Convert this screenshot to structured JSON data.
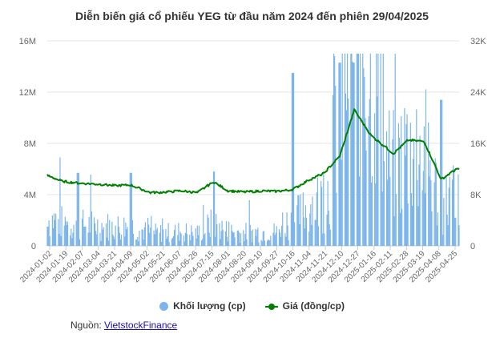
{
  "chart_data": {
    "type": "bar+line",
    "title": "Diễn biến giá cổ phiếu YEG từ đầu năm 2024 đến phiên 29/04/2025",
    "x_tick_labels": [
      "2024-01-02",
      "2024-01-19",
      "2024-02-07",
      "2024-03-04",
      "2024-03-21",
      "2024-04-09",
      "2024-05-02",
      "2024-05-21",
      "2024-06-07",
      "2024-06-26",
      "2024-07-15",
      "2024-08-01",
      "2024-08-20",
      "2024-09-10",
      "2024-09-27",
      "2024-10-16",
      "2024-11-04",
      "2024-11-21",
      "2024-12-10",
      "2024-12-27",
      "2025-01-16",
      "2025-02-11",
      "2025-02-28",
      "2025-03-19",
      "2025-04-08",
      "2025-04-25"
    ],
    "y_left": {
      "ticks": [
        "0",
        "4M",
        "8M",
        "12M",
        "16M"
      ],
      "range": [
        0,
        16000000
      ]
    },
    "y_right": {
      "ticks": [
        "0",
        "8K",
        "16K",
        "24K",
        "32K"
      ],
      "range": [
        0,
        32000
      ]
    },
    "grid": true,
    "legend_position": "bottom",
    "series": [
      {
        "name": "Khối lượng (cp)",
        "axis": "left",
        "kind": "column",
        "color": "#7cb5ec",
        "key_points": [
          {
            "x": "2024-01-02",
            "y": 1500000
          },
          {
            "x": "2024-02-07",
            "y": 5700000
          },
          {
            "x": "2024-04-09",
            "y": 5700000
          },
          {
            "x": "2024-07-15",
            "y": 5800000
          },
          {
            "x": "2024-10-16",
            "y": 13500000
          },
          {
            "x": "2024-12-10",
            "y": 14300000
          },
          {
            "x": "2024-12-27",
            "y": 14300000
          },
          {
            "x": "2025-04-08",
            "y": 11400000
          },
          {
            "x": "2025-04-25",
            "y": 2200000
          }
        ]
      },
      {
        "name": "Giá (đồng/cp)",
        "axis": "right",
        "kind": "line",
        "color": "#008000",
        "points": [
          {
            "x": "2024-01-02",
            "y": 11000
          },
          {
            "x": "2024-01-19",
            "y": 10100
          },
          {
            "x": "2024-02-07",
            "y": 9800
          },
          {
            "x": "2024-03-04",
            "y": 9600
          },
          {
            "x": "2024-03-21",
            "y": 9400
          },
          {
            "x": "2024-04-09",
            "y": 9500
          },
          {
            "x": "2024-05-02",
            "y": 8300
          },
          {
            "x": "2024-05-21",
            "y": 8400
          },
          {
            "x": "2024-06-07",
            "y": 8600
          },
          {
            "x": "2024-06-26",
            "y": 8300
          },
          {
            "x": "2024-07-15",
            "y": 10000
          },
          {
            "x": "2024-08-01",
            "y": 8600
          },
          {
            "x": "2024-08-20",
            "y": 8400
          },
          {
            "x": "2024-09-10",
            "y": 8600
          },
          {
            "x": "2024-09-27",
            "y": 8500
          },
          {
            "x": "2024-10-16",
            "y": 8800
          },
          {
            "x": "2024-11-04",
            "y": 10300
          },
          {
            "x": "2024-11-21",
            "y": 11300
          },
          {
            "x": "2024-12-10",
            "y": 14000
          },
          {
            "x": "2024-12-27",
            "y": 21200
          },
          {
            "x": "2025-01-16",
            "y": 17200
          },
          {
            "x": "2025-02-11",
            "y": 14400
          },
          {
            "x": "2025-02-28",
            "y": 16500
          },
          {
            "x": "2025-03-19",
            "y": 16300
          },
          {
            "x": "2025-04-08",
            "y": 10400
          },
          {
            "x": "2025-04-25",
            "y": 11900
          }
        ]
      }
    ]
  },
  "source": {
    "label": "Nguồn:",
    "link_text": "VietstockFinance"
  }
}
